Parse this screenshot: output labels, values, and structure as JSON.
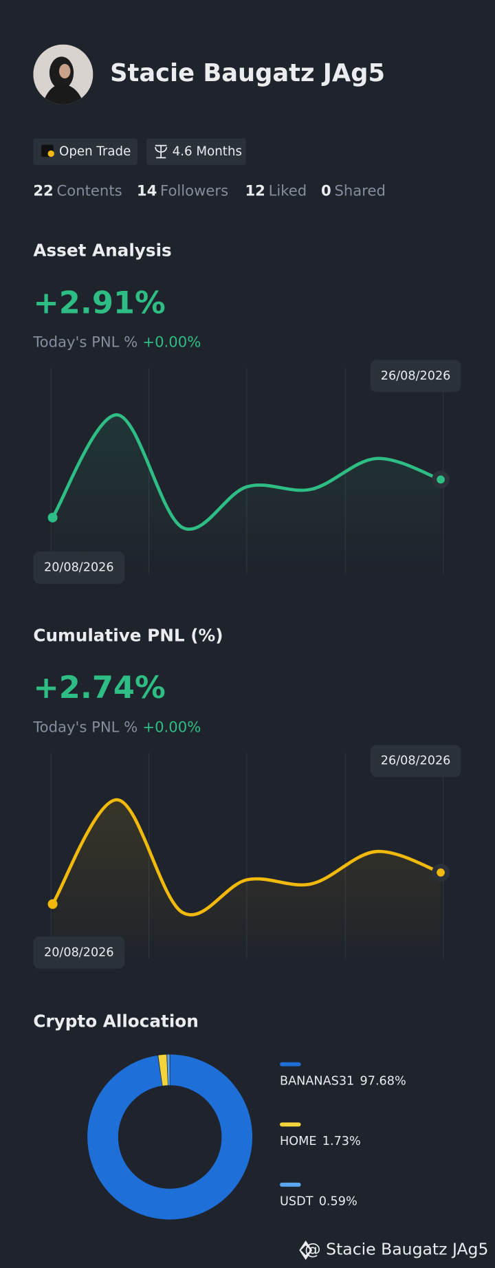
{
  "profile": {
    "name": "Stacie Baugatz JAg5",
    "badges": [
      "Open Trade",
      "4.6 Months"
    ],
    "stats": [
      {
        "count": 22,
        "label": "Contents"
      },
      {
        "count": 14,
        "label": "Followers"
      },
      {
        "count": 12,
        "label": "Liked"
      },
      {
        "count": 0,
        "label": "Shared"
      }
    ]
  },
  "asset_analysis": {
    "title": "Asset Analysis",
    "value": "+2.91%",
    "today_label": "Today's PNL %",
    "today_value": "+0.00%",
    "chart": {
      "type": "line",
      "categories": [
        "20/08/2026",
        null,
        null,
        null,
        null,
        null,
        "26/08/2026"
      ],
      "values": [
        20,
        147,
        8,
        58,
        55,
        93,
        67
      ],
      "color": "#2ebd85"
    }
  },
  "cumulative_pnl": {
    "title": "Cumulative PNL (%)",
    "value": "+2.74%",
    "today_label": "Today's PNL %",
    "today_value": "+0.00%",
    "chart": {
      "type": "line",
      "categories": [
        "20/08/2026",
        null,
        null,
        null,
        null,
        null,
        "26/08/2026"
      ],
      "values": [
        18,
        147,
        8,
        48,
        43,
        83,
        57
      ],
      "color": "#f0b90b"
    }
  },
  "crypto_allocation": {
    "title": "Crypto Allocation",
    "chart": {
      "type": "pie",
      "categories": [
        "BANANAS31",
        "HOME",
        "USDT"
      ],
      "values": [
        97.68,
        1.73,
        0.59
      ],
      "value_labels": [
        "97.68%",
        "1.73%",
        "0.59%"
      ],
      "colors": [
        "#1f6fd9",
        "#f5d33a",
        "#5aa7f0"
      ]
    }
  },
  "footer": "@ Stacie Baugatz JAg5"
}
